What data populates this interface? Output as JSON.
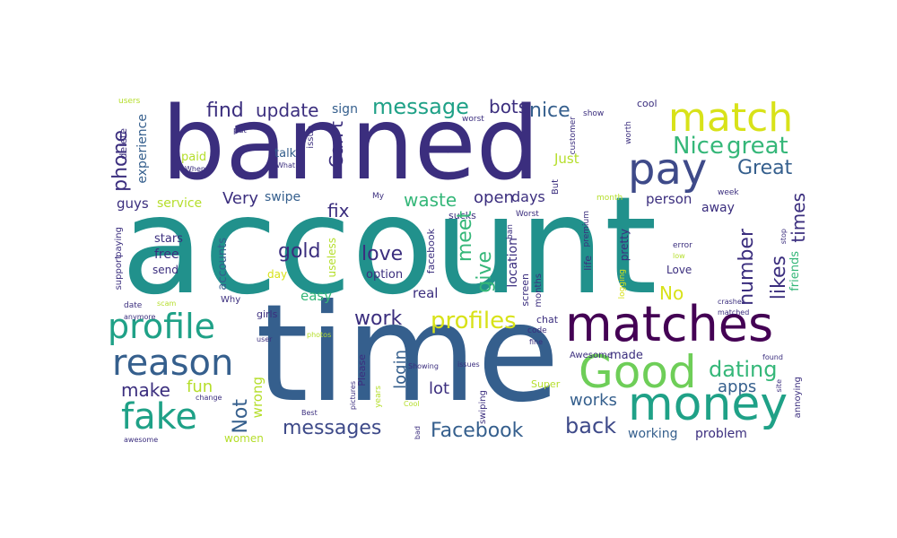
{
  "words": {
    "banned": "banned",
    "account": "account",
    "time": "time",
    "match": "match",
    "pay": "pay",
    "matches": "matches",
    "money": "money",
    "Good": "Good",
    "profile": "profile",
    "reason": "reason",
    "fake": "fake",
    "profiles": "profiles",
    "message": "message",
    "Facebook": "Facebook",
    "messages": "messages",
    "back": "back",
    "dating": "dating",
    "great": "great",
    "Great": "Great",
    "Nice": "Nice",
    "nice": "nice",
    "find": "find",
    "update": "update",
    "bots": "bots",
    "phone": "phone",
    "likes": "likes",
    "number": "number",
    "meet": "meet",
    "give": "give",
    "love": "love",
    "gold": "gold",
    "work": "work",
    "login": "login",
    "Not": "Not",
    "make": "make",
    "fun": "fun",
    "works": "works",
    "apps": "apps",
    "lot": "lot",
    "fix": "fix",
    "Can't": "Can't",
    "waste": "waste",
    "open": "open",
    "days": "days",
    "Very": "Very",
    "swipe": "swipe",
    "service": "service",
    "guys": "guys",
    "experience": "experience",
    "times": "times",
    "No": "No",
    "working": "working",
    "problem": "problem",
    "person": "person",
    "away": "away",
    "sign": "sign",
    "friends": "friends",
    "easy": "easy",
    "real": "real",
    "wrong": "wrong",
    "women": "women",
    "accounts": "accounts",
    "free": "free",
    "send": "send",
    "stars": "stars",
    "Just": "Just",
    "annoying": "annoying",
    "cool": "cool",
    "users": "users",
    "delete": "delete",
    "paid": "paid",
    "When": "When",
    "talk": "talk",
    "What": "What",
    "issue": "issue",
    "worst": "worst",
    "customer": "customer",
    "show": "show",
    "worth": "worth",
    "month": "month",
    "week": "week",
    "Worst": "Worst",
    "My": "My",
    "useless": "useless",
    "facebook": "facebook",
    "option": "option",
    "location": "location",
    "ban": "ban",
    "sucks": "sucks",
    "premium": "premium",
    "pretty": "pretty",
    "error": "error",
    "fine": "fine",
    "low": "low",
    "stop": "stop",
    "Love": "Love",
    "life": "life",
    "support": "support",
    "paying": "paying",
    "Why": "Why",
    "girls": "girls",
    "date": "date",
    "scam": "scam",
    "photos": "photos",
    "user": "user",
    "Please": "Please",
    "anymore": "anymore",
    "code": "code",
    "chat": "chat",
    "screen": "screen",
    "months": "months",
    "Awesome": "Awesome",
    "made": "made",
    "Super": "Super",
    "issues": "issues",
    "change": "change",
    "years": "years",
    "pictures": "pictures",
    "Cool": "Cool",
    "Best": "Best",
    "bad": "bad",
    "swiping": "swiping",
    "awesome": "awesome",
    "crashes": "crashes",
    "matched": "matched",
    "found": "found",
    "site": "site",
    "logging": "logging",
    "day": "day",
    "put": "put",
    "Showing": "Showing",
    "o": "o",
    "But": "But"
  },
  "palette": {
    "dark_purple": "#440154",
    "indigo": "#3b2e7e",
    "blue": "#355f8d",
    "slate": "#3e4a89",
    "teal": "#21918c",
    "green_teal": "#1fa187",
    "green": "#35b779",
    "light_green": "#6ece58",
    "lime": "#b5de2b",
    "yellow": "#d8e219",
    "bright_yellow": "#fde725"
  }
}
